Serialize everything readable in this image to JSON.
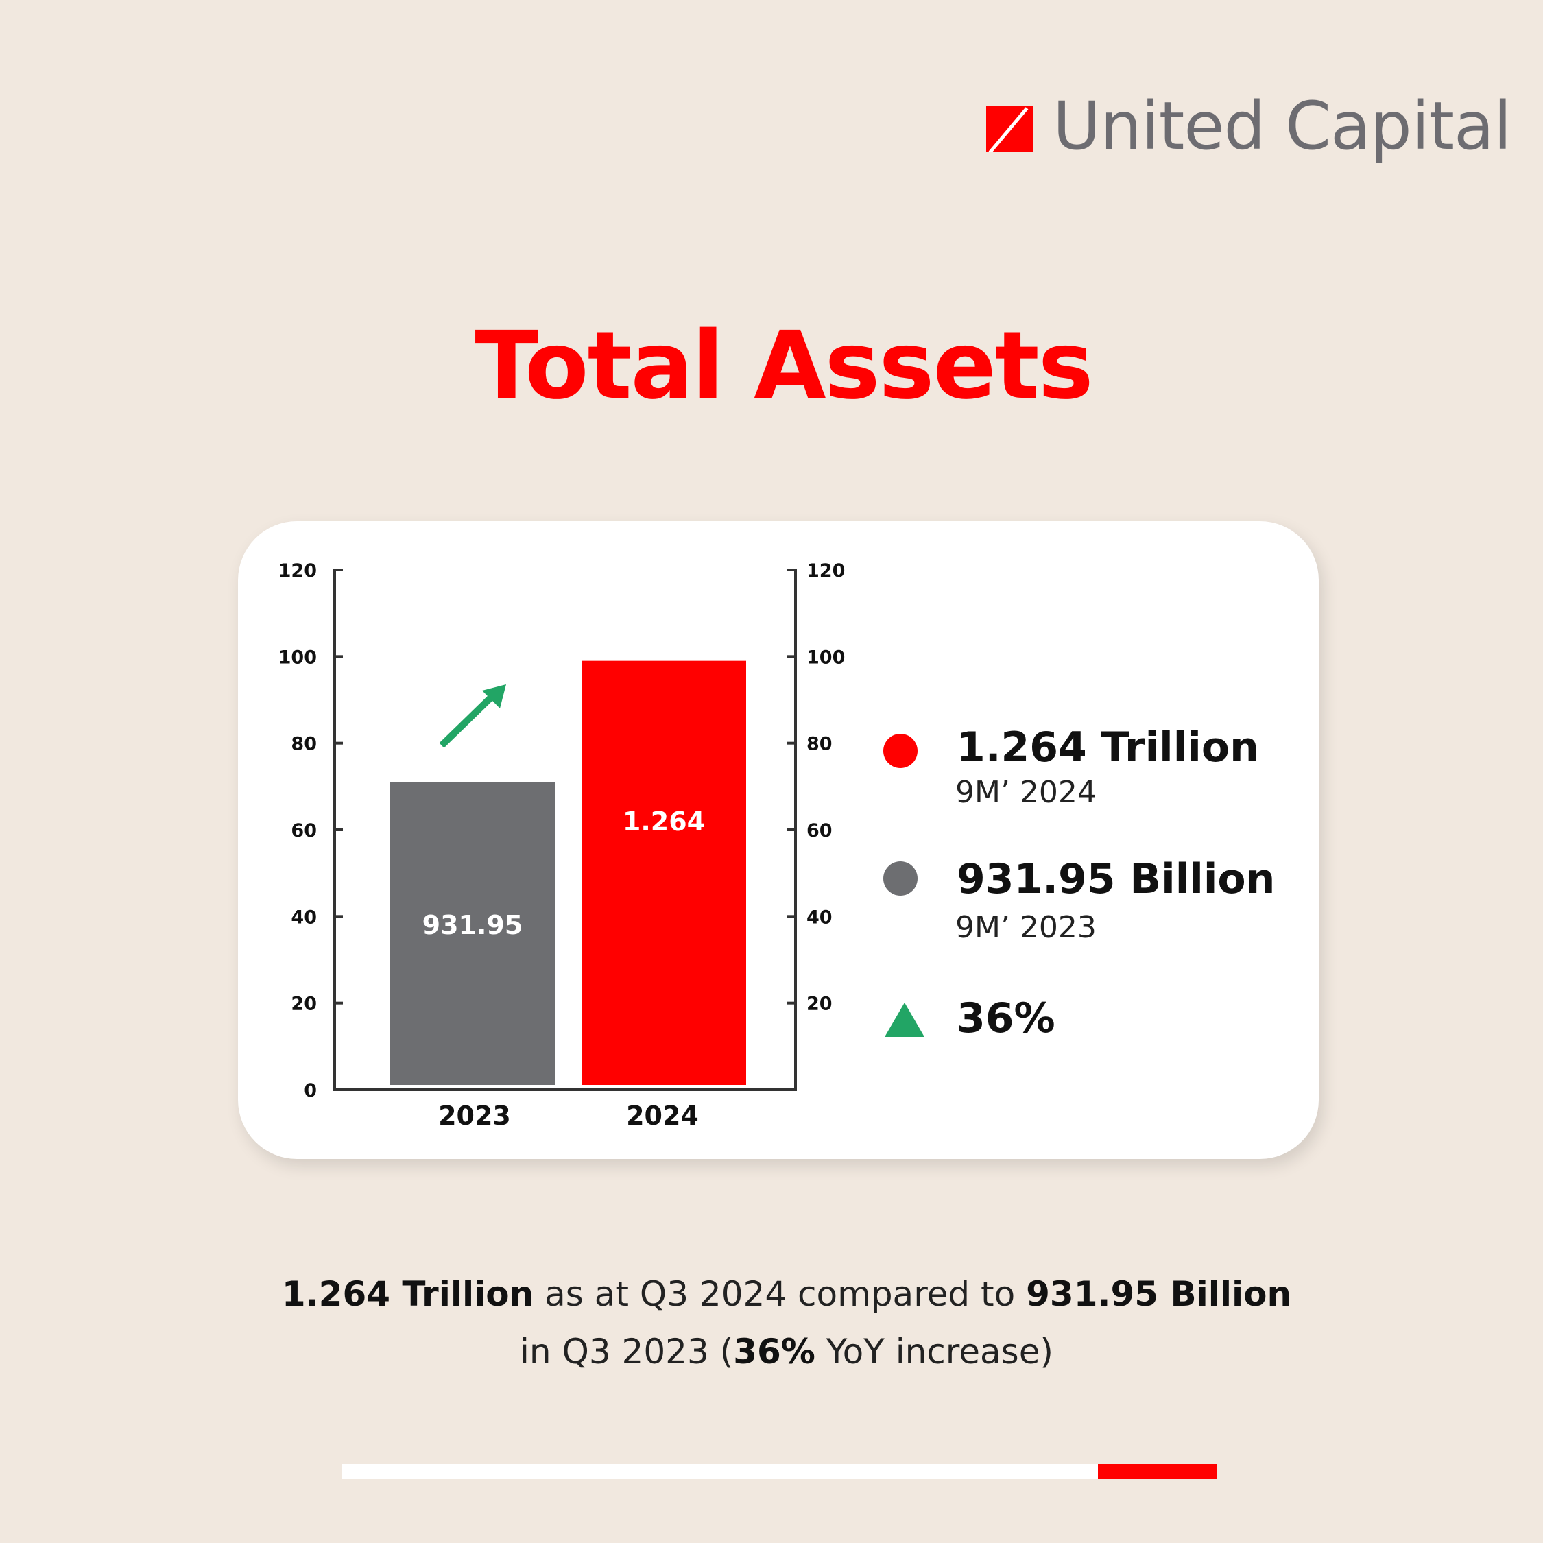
{
  "brand": {
    "name": "United Capital",
    "color": "#ff0000",
    "text_color": "#6d6c71"
  },
  "title": "Total Assets",
  "chart_data": {
    "type": "bar",
    "categories": [
      "2023",
      "2024"
    ],
    "values": [
      71,
      99
    ],
    "data_labels": [
      "931.95",
      "1.264"
    ],
    "colors": [
      "#6d6e71",
      "#ff0000"
    ],
    "ylim": [
      0,
      120
    ],
    "yticks_left": [
      0,
      20,
      40,
      60,
      80,
      100,
      120
    ],
    "yticks_right": [
      20,
      40,
      60,
      80,
      100,
      120
    ],
    "grid": false,
    "annotation": "green-up-arrow",
    "annotation_color": "#22a565"
  },
  "legend": [
    {
      "value": "1.264 Trillion",
      "period": "9M’ 2024",
      "color": "#ff0000"
    },
    {
      "value": "931.95 Billion",
      "period": "9M’ 2023",
      "color": "#6d6e71"
    }
  ],
  "growth": {
    "value": "36%",
    "icon": "up-triangle-icon",
    "color": "#22a565"
  },
  "caption": {
    "b1": "1.264 Trillion",
    "t1": " as at Q3 2024 compared to ",
    "b2": "931.95 Billion",
    "t2": "in Q3 2023 (",
    "b3": "36%",
    "t3": " YoY increase)"
  },
  "page_indicator": {
    "active_segment_start": 0.865,
    "colors": [
      "#ffffff",
      "#ff0000"
    ]
  }
}
